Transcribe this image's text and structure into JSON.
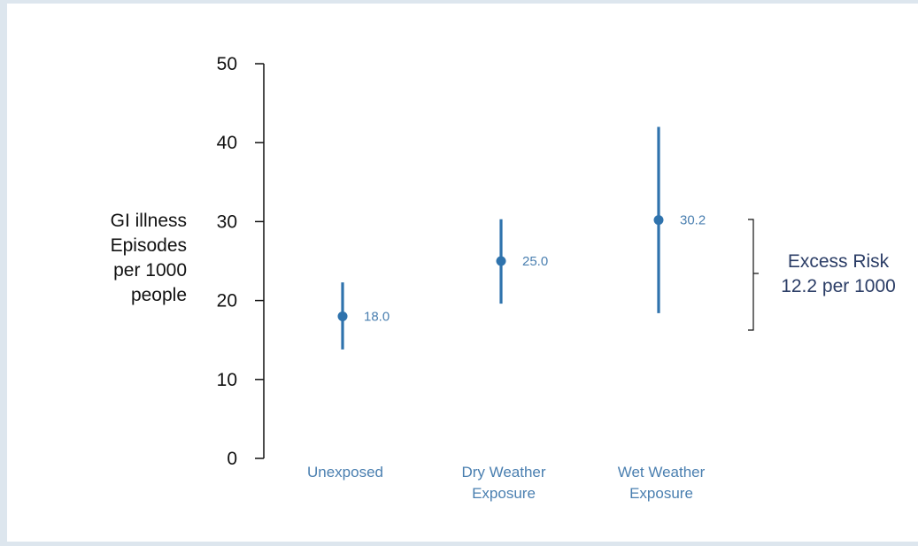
{
  "chart_data": {
    "type": "scatter",
    "ylabel": "GI illness\nEpisodes\nper 1000\npeople",
    "ylim": [
      0,
      50
    ],
    "yticks": [
      0,
      10,
      20,
      30,
      40,
      50
    ],
    "categories": [
      "Unexposed",
      "Dry Weather\nExposure",
      "Wet Weather\nExposure"
    ],
    "estimates": [
      18.0,
      25.0,
      30.2
    ],
    "value_labels": [
      "18.0",
      "25.0",
      "30.2"
    ],
    "ci_lower": [
      13.8,
      19.6,
      18.4
    ],
    "ci_upper": [
      22.3,
      30.3,
      42.0
    ],
    "annotation": {
      "label": "Excess Risk",
      "value": "12.2 per 1000"
    }
  },
  "colors": {
    "series": "#2f73ad",
    "category_text": "#4a7fb0",
    "annotation_text": "#2b3d66",
    "axis": "#111111"
  }
}
